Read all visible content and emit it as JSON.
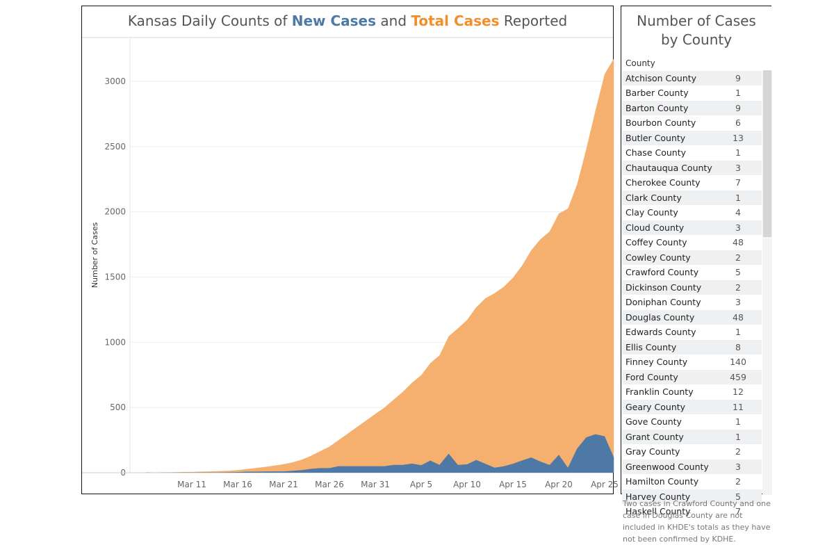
{
  "chart_data": {
    "type": "area",
    "title": {
      "prefix": "Kansas Daily Counts of ",
      "new_label": "New Cases",
      "middle": " and ",
      "total_label": "Total Cases",
      "suffix": " Reported"
    },
    "ylabel": "Number of Cases",
    "xlabel": "",
    "ylim": [
      0,
      3200
    ],
    "yticks": [
      0,
      500,
      1000,
      1500,
      2000,
      2500,
      3000
    ],
    "xticks": [
      "Mar 11",
      "Mar 16",
      "Mar 21",
      "Mar 26",
      "Mar 31",
      "Apr 5",
      "Apr 10",
      "Apr 15",
      "Apr 20",
      "Apr 25"
    ],
    "grid": true,
    "colors": {
      "new": "#4e79a7",
      "total": "#f5b070"
    },
    "series": [
      {
        "name": "Total Cases",
        "values": [
          1,
          1,
          2,
          3,
          5,
          6,
          8,
          10,
          12,
          15,
          20,
          28,
          36,
          45,
          55,
          65,
          80,
          100,
          130,
          165,
          200,
          250,
          300,
          350,
          400,
          450,
          500,
          560,
          620,
          690,
          747,
          840,
          900,
          1046,
          1106,
          1170,
          1268,
          1337,
          1376,
          1425,
          1494,
          1588,
          1705,
          1790,
          1849,
          1986,
          2025,
          2211,
          2482,
          2777,
          3056,
          3174
        ]
      },
      {
        "name": "New Cases",
        "values": [
          1,
          0,
          1,
          1,
          2,
          1,
          2,
          2,
          2,
          3,
          5,
          8,
          8,
          9,
          10,
          10,
          15,
          20,
          30,
          35,
          35,
          50,
          50,
          50,
          50,
          50,
          50,
          60,
          60,
          70,
          57,
          93,
          60,
          146,
          60,
          64,
          98,
          69,
          39,
          49,
          69,
          94,
          117,
          85,
          59,
          137,
          39,
          186,
          271,
          295,
          279,
          118
        ]
      }
    ]
  },
  "panel": {
    "title_line1": "Number of Cases",
    "title_line2": "by County",
    "column_header": "County",
    "rows": [
      {
        "county": "Atchison County",
        "count": "9"
      },
      {
        "county": "Barber County",
        "count": "1"
      },
      {
        "county": "Barton County",
        "count": "9"
      },
      {
        "county": "Bourbon County",
        "count": "6"
      },
      {
        "county": "Butler County",
        "count": "13"
      },
      {
        "county": "Chase County",
        "count": "1"
      },
      {
        "county": "Chautauqua County",
        "count": "3"
      },
      {
        "county": "Cherokee County",
        "count": "7"
      },
      {
        "county": "Clark County",
        "count": "1"
      },
      {
        "county": "Clay County",
        "count": "4"
      },
      {
        "county": "Cloud County",
        "count": "3"
      },
      {
        "county": "Coffey County",
        "count": "48"
      },
      {
        "county": "Cowley County",
        "count": "2"
      },
      {
        "county": "Crawford County",
        "count": "5"
      },
      {
        "county": "Dickinson County",
        "count": "2"
      },
      {
        "county": "Doniphan County",
        "count": "3"
      },
      {
        "county": "Douglas County",
        "count": "48"
      },
      {
        "county": "Edwards County",
        "count": "1"
      },
      {
        "county": "Ellis County",
        "count": "8"
      },
      {
        "county": "Finney County",
        "count": "140"
      },
      {
        "county": "Ford County",
        "count": "459"
      },
      {
        "county": "Franklin County",
        "count": "12"
      },
      {
        "county": "Geary County",
        "count": "11"
      },
      {
        "county": "Gove County",
        "count": "1"
      },
      {
        "county": "Grant County",
        "count": "1"
      },
      {
        "county": "Gray County",
        "count": "2"
      },
      {
        "county": "Greenwood County",
        "count": "3"
      },
      {
        "county": "Hamilton County",
        "count": "2"
      },
      {
        "county": "Harvey County",
        "count": "5"
      },
      {
        "county": "Haskell County",
        "count": "7"
      }
    ],
    "footnote": "Two cases in Crawford County and one case in Douglas County are not included in KHDE's totals as they have not been confirmed by KDHE."
  }
}
